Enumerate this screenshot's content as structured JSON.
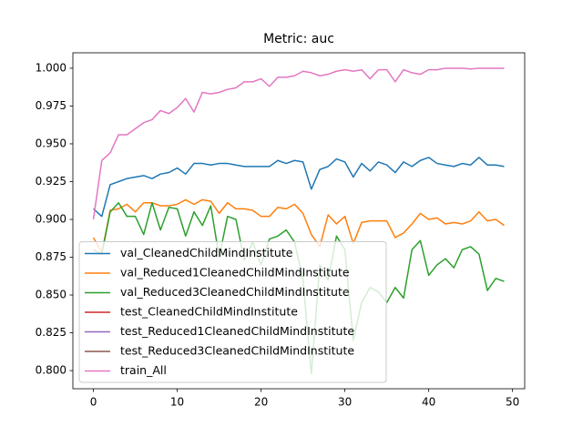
{
  "chart_data": {
    "type": "line",
    "title": "Metric: auc",
    "x": [
      0,
      1,
      2,
      3,
      4,
      5,
      6,
      7,
      8,
      9,
      10,
      11,
      12,
      13,
      14,
      15,
      16,
      17,
      18,
      19,
      20,
      21,
      22,
      23,
      24,
      25,
      26,
      27,
      28,
      29,
      30,
      31,
      32,
      33,
      34,
      35,
      36,
      37,
      38,
      39,
      40,
      41,
      42,
      43,
      44,
      45,
      46,
      47,
      48,
      49
    ],
    "xlim": [
      -2.45,
      51.45
    ],
    "xticks": [
      0,
      10,
      20,
      30,
      40,
      50
    ],
    "ylim": [
      0.788,
      1.0102
    ],
    "yticks": [
      {
        "value": 0.8,
        "label": "0.800"
      },
      {
        "value": 0.825,
        "label": "0.825"
      },
      {
        "value": 0.85,
        "label": "0.850"
      },
      {
        "value": 0.875,
        "label": "0.875"
      },
      {
        "value": 0.9,
        "label": "0.900"
      },
      {
        "value": 0.925,
        "label": "0.925"
      },
      {
        "value": 0.95,
        "label": "0.950"
      },
      {
        "value": 0.975,
        "label": "0.975"
      },
      {
        "value": 1.0,
        "label": "1.000"
      }
    ],
    "legend": "lower left",
    "series": [
      {
        "name": "val_CleanedChildMindInstitute",
        "color": "#1f77b4",
        "values": [
          0.907,
          0.902,
          0.923,
          0.925,
          0.927,
          0.928,
          0.929,
          0.927,
          0.93,
          0.931,
          0.934,
          0.93,
          0.937,
          0.937,
          0.936,
          0.937,
          0.937,
          0.936,
          0.935,
          0.935,
          0.935,
          0.935,
          0.939,
          0.937,
          0.939,
          0.938,
          0.92,
          0.933,
          0.935,
          0.94,
          0.938,
          0.928,
          0.937,
          0.932,
          0.938,
          0.936,
          0.931,
          0.938,
          0.935,
          0.939,
          0.941,
          0.937,
          0.936,
          0.935,
          0.937,
          0.936,
          0.941,
          0.936,
          0.936,
          0.935
        ]
      },
      {
        "name": "val_Reduced1CleanedChildMindInstitute",
        "color": "#ff7f0e",
        "values": [
          0.888,
          0.878,
          0.906,
          0.907,
          0.91,
          0.905,
          0.911,
          0.911,
          0.909,
          0.909,
          0.91,
          0.913,
          0.91,
          0.913,
          0.912,
          0.904,
          0.911,
          0.907,
          0.907,
          0.906,
          0.902,
          0.902,
          0.908,
          0.907,
          0.91,
          0.904,
          0.89,
          0.882,
          0.903,
          0.897,
          0.902,
          0.884,
          0.898,
          0.899,
          0.899,
          0.899,
          0.888,
          0.891,
          0.897,
          0.904,
          0.9,
          0.901,
          0.897,
          0.898,
          0.897,
          0.899,
          0.905,
          0.899,
          0.9,
          0.896
        ]
      },
      {
        "name": "val_Reduced3CleanedChildMindInstitute",
        "color": "#2ca02c",
        "values": [
          0.88,
          0.877,
          0.905,
          0.911,
          0.902,
          0.902,
          0.89,
          0.911,
          0.893,
          0.908,
          0.907,
          0.889,
          0.905,
          0.896,
          0.909,
          0.875,
          0.902,
          0.9,
          0.873,
          0.885,
          0.87,
          0.887,
          0.889,
          0.893,
          0.885,
          0.86,
          0.798,
          0.87,
          0.86,
          0.889,
          0.88,
          0.82,
          0.845,
          0.855,
          0.852,
          0.845,
          0.855,
          0.848,
          0.88,
          0.886,
          0.863,
          0.87,
          0.874,
          0.868,
          0.88,
          0.882,
          0.877,
          0.853,
          0.861,
          0.859
        ]
      },
      {
        "name": "test_CleanedChildMindInstitute",
        "color": "#d62728",
        "values": [
          null,
          null,
          null,
          null,
          null,
          null,
          null,
          null,
          null,
          null,
          null,
          null,
          null,
          null,
          null,
          null,
          null,
          null,
          null,
          null,
          null,
          null,
          null,
          null,
          null,
          null,
          null,
          null,
          null,
          null,
          null,
          null,
          null,
          null,
          null,
          null,
          null,
          null,
          null,
          null,
          null,
          null,
          null,
          null,
          null,
          null,
          null,
          null,
          null,
          null
        ]
      },
      {
        "name": "test_Reduced1CleanedChildMindInstitute",
        "color": "#9467bd",
        "values": [
          null,
          null,
          null,
          null,
          null,
          null,
          null,
          null,
          null,
          null,
          null,
          null,
          null,
          null,
          null,
          null,
          null,
          null,
          null,
          null,
          null,
          null,
          null,
          null,
          null,
          null,
          null,
          null,
          null,
          null,
          null,
          null,
          null,
          null,
          null,
          null,
          null,
          null,
          null,
          null,
          null,
          null,
          null,
          null,
          null,
          null,
          null,
          null,
          null,
          null
        ]
      },
      {
        "name": "test_Reduced3CleanedChildMindInstitute",
        "color": "#8c564b",
        "values": [
          null,
          null,
          null,
          null,
          null,
          null,
          null,
          null,
          null,
          null,
          null,
          null,
          null,
          null,
          null,
          null,
          null,
          null,
          null,
          null,
          null,
          null,
          null,
          null,
          null,
          null,
          null,
          null,
          null,
          null,
          null,
          null,
          null,
          null,
          null,
          null,
          null,
          null,
          null,
          null,
          null,
          null,
          null,
          null,
          null,
          null,
          null,
          null,
          null,
          null
        ]
      },
      {
        "name": "train_All",
        "color": "#e377c2",
        "values": [
          0.9,
          0.939,
          0.944,
          0.956,
          0.956,
          0.96,
          0.964,
          0.966,
          0.972,
          0.97,
          0.974,
          0.98,
          0.971,
          0.984,
          0.983,
          0.984,
          0.986,
          0.987,
          0.991,
          0.991,
          0.993,
          0.988,
          0.994,
          0.994,
          0.995,
          0.998,
          0.997,
          0.995,
          0.996,
          0.998,
          0.999,
          0.998,
          0.999,
          0.993,
          0.999,
          0.999,
          0.991,
          0.999,
          0.997,
          0.996,
          0.999,
          0.999,
          1.0,
          1.0,
          1.0,
          0.9995,
          1.0,
          1.0,
          1.0,
          1.0
        ]
      }
    ]
  }
}
